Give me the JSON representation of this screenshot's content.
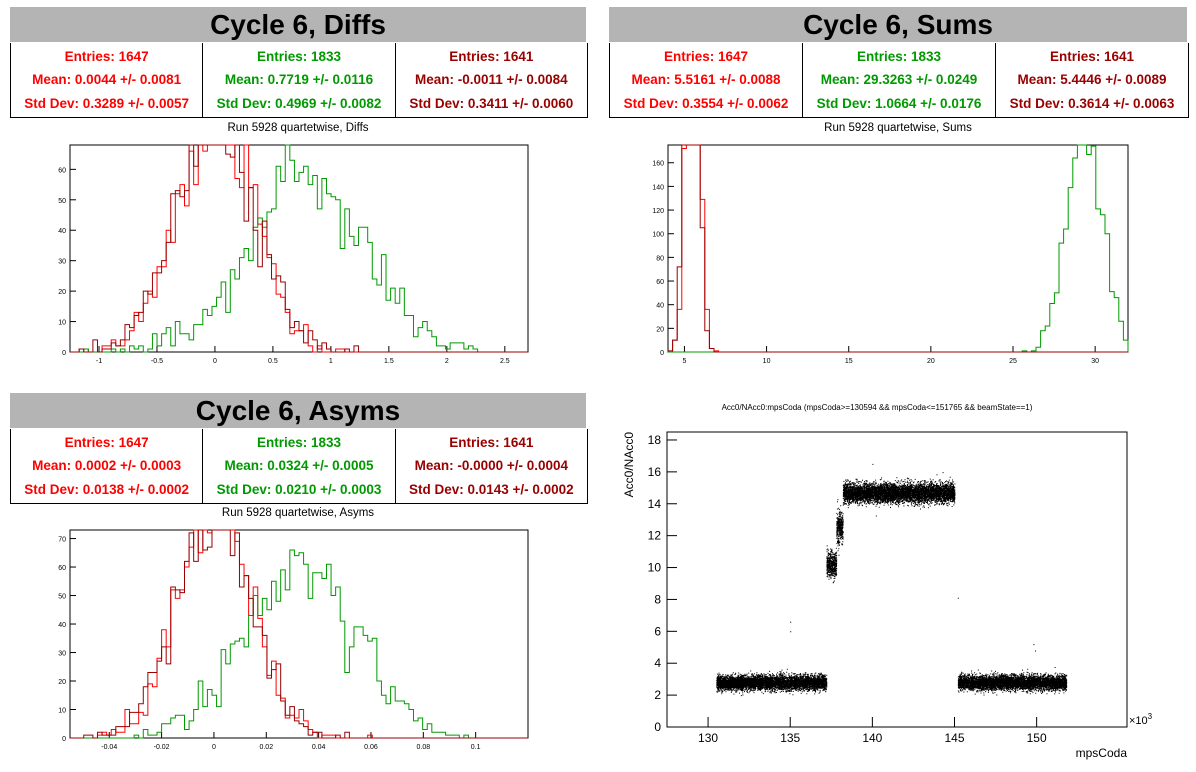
{
  "panels": {
    "diffs": {
      "title": "Cycle 6, Diffs",
      "subtitle": "Run 5928 quartetwise, Diffs",
      "stats": [
        {
          "color": "#ff0000",
          "entries": "Entries: 1647",
          "mean": "Mean: 0.0044 +/- 0.0081",
          "std": "Std Dev: 0.3289 +/- 0.0057"
        },
        {
          "color": "#009900",
          "entries": "Entries: 1833",
          "mean": "Mean: 0.7719 +/- 0.0116",
          "std": "Std Dev: 0.4969 +/- 0.0082"
        },
        {
          "color": "#990000",
          "entries": "Entries: 1641",
          "mean": "Mean: -0.0011 +/- 0.0084",
          "std": "Std Dev: 0.3411 +/- 0.0060"
        }
      ]
    },
    "sums": {
      "title": "Cycle 6, Sums",
      "subtitle": "Run 5928 quartetwise, Sums",
      "stats": [
        {
          "color": "#ff0000",
          "entries": "Entries: 1647",
          "mean": "Mean: 5.5161 +/- 0.0088",
          "std": "Std Dev: 0.3554 +/- 0.0062"
        },
        {
          "color": "#009900",
          "entries": "Entries: 1833",
          "mean": "Mean: 29.3263 +/- 0.0249",
          "std": "Std Dev: 1.0664 +/- 0.0176"
        },
        {
          "color": "#990000",
          "entries": "Entries: 1641",
          "mean": "Mean: 5.4446 +/- 0.0089",
          "std": "Std Dev: 0.3614 +/- 0.0063"
        }
      ]
    },
    "asyms": {
      "title": "Cycle 6, Asyms",
      "subtitle": "Run 5928 quartetwise, Asyms",
      "stats": [
        {
          "color": "#ff0000",
          "entries": "Entries: 1647",
          "mean": "Mean: 0.0002 +/- 0.0003",
          "std": "Std Dev: 0.0138 +/- 0.0002"
        },
        {
          "color": "#009900",
          "entries": "Entries: 1833",
          "mean": "Mean: 0.0324 +/- 0.0005",
          "std": "Std Dev: 0.0210 +/- 0.0003"
        },
        {
          "color": "#990000",
          "entries": "Entries: 1641",
          "mean": "Mean: -0.0000 +/- 0.0004",
          "std": "Std Dev: 0.0143 +/- 0.0002"
        }
      ]
    }
  },
  "chart_data": [
    {
      "type": "histogram",
      "title": "Run 5928 quartetwise, Diffs",
      "xlim": [
        -1.25,
        2.7
      ],
      "ylim": [
        0,
        68
      ],
      "xticks": [
        "-1",
        "-0.5",
        "0",
        "0.5",
        "1",
        "1.5",
        "2",
        "2.5"
      ],
      "yticks": [
        "0",
        "10",
        "20",
        "30",
        "40",
        "50",
        "60"
      ],
      "series": [
        {
          "color": "#ff0000",
          "mean": 0.0044,
          "std": 0.3289,
          "entries": 1647
        },
        {
          "color": "#009900",
          "mean": 0.7719,
          "std": 0.4969,
          "entries": 1833
        },
        {
          "color": "#990000",
          "mean": -0.0011,
          "std": 0.3411,
          "entries": 1641
        }
      ]
    },
    {
      "type": "histogram",
      "title": "Run 5928 quartetwise, Sums",
      "xlim": [
        4,
        32
      ],
      "ylim": [
        0,
        175
      ],
      "xticks": [
        "5",
        "10",
        "15",
        "20",
        "25",
        "30"
      ],
      "yticks": [
        "0",
        "20",
        "40",
        "60",
        "80",
        "100",
        "120",
        "140",
        "160"
      ],
      "series": [
        {
          "color": "#ff0000",
          "mean": 5.5161,
          "std": 0.3554,
          "entries": 1647
        },
        {
          "color": "#009900",
          "mean": 29.3263,
          "std": 1.0664,
          "entries": 1833
        },
        {
          "color": "#990000",
          "mean": 5.4446,
          "std": 0.3614,
          "entries": 1641
        }
      ]
    },
    {
      "type": "histogram",
      "title": "Run 5928 quartetwise, Asyms",
      "xlim": [
        -0.055,
        0.12
      ],
      "ylim": [
        0,
        73
      ],
      "xticks": [
        "-0.04",
        "-0.02",
        "0",
        "0.02",
        "0.04",
        "0.06",
        "0.08",
        "0.1"
      ],
      "yticks": [
        "0",
        "10",
        "20",
        "30",
        "40",
        "50",
        "60",
        "70"
      ],
      "series": [
        {
          "color": "#ff0000",
          "mean": 0.0002,
          "std": 0.0138,
          "entries": 1647
        },
        {
          "color": "#009900",
          "mean": 0.0324,
          "std": 0.021,
          "entries": 1833
        },
        {
          "color": "#990000",
          "mean": 0.0,
          "std": 0.0143,
          "entries": 1641
        }
      ]
    },
    {
      "type": "scatter",
      "title": "Acc0/NAcc0:mpsCoda (mpsCoda>=130594 && mpsCoda<=151765 && beamState==1)",
      "xlabel": "mpsCoda",
      "ylabel": "Acc0/NAcc0",
      "xlim": [
        127.5,
        155.5
      ],
      "ylim": [
        0,
        18.5
      ],
      "xticks": [
        "130",
        "135",
        "140",
        "145",
        "150"
      ],
      "yticks": [
        "0",
        "2",
        "4",
        "6",
        "8",
        "10",
        "12",
        "14",
        "16",
        "18"
      ],
      "x_exponent": "×10",
      "x_exponent_sup": "3",
      "clusters": [
        {
          "x": [
            130.5,
            137.2
          ],
          "y": 2.8,
          "spread": 0.45
        },
        {
          "x": [
            137.2,
            137.8
          ],
          "y": 10.2,
          "spread": 0.8
        },
        {
          "x": [
            137.8,
            138.2
          ],
          "y": 12.5,
          "spread": 1.0
        },
        {
          "x": [
            138.2,
            145.0
          ],
          "y": 14.7,
          "spread": 0.6
        },
        {
          "x": [
            145.2,
            151.8
          ],
          "y": 2.8,
          "spread": 0.45
        }
      ]
    }
  ]
}
